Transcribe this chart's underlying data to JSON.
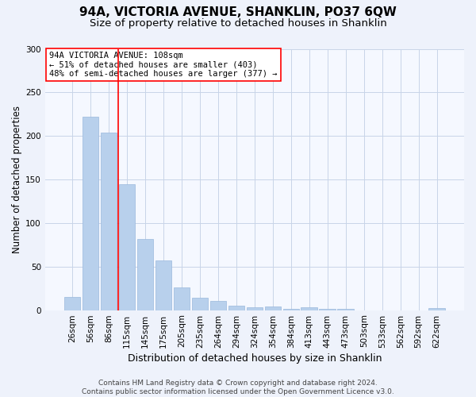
{
  "title": "94A, VICTORIA AVENUE, SHANKLIN, PO37 6QW",
  "subtitle": "Size of property relative to detached houses in Shanklin",
  "xlabel": "Distribution of detached houses by size in Shanklin",
  "ylabel": "Number of detached properties",
  "footer_line1": "Contains HM Land Registry data © Crown copyright and database right 2024.",
  "footer_line2": "Contains public sector information licensed under the Open Government Licence v3.0.",
  "bar_labels": [
    "26sqm",
    "56sqm",
    "86sqm",
    "115sqm",
    "145sqm",
    "175sqm",
    "205sqm",
    "235sqm",
    "264sqm",
    "294sqm",
    "324sqm",
    "354sqm",
    "384sqm",
    "413sqm",
    "443sqm",
    "473sqm",
    "503sqm",
    "533sqm",
    "562sqm",
    "592sqm",
    "622sqm"
  ],
  "bar_values": [
    15,
    222,
    204,
    145,
    82,
    57,
    26,
    14,
    11,
    5,
    3,
    4,
    1,
    3,
    1,
    1,
    0,
    0,
    0,
    0,
    2
  ],
  "bar_color": "#b8d0ec",
  "bar_edge_color": "#9ab8dc",
  "vline_x": 2.5,
  "vline_color": "red",
  "annotation_title": "94A VICTORIA AVENUE: 108sqm",
  "annotation_line1": "← 51% of detached houses are smaller (403)",
  "annotation_line2": "48% of semi-detached houses are larger (377) →",
  "annotation_box_color": "white",
  "annotation_box_edge": "red",
  "ylim": [
    0,
    300
  ],
  "yticks": [
    0,
    50,
    100,
    150,
    200,
    250,
    300
  ],
  "bg_color": "#eef2fb",
  "plot_bg_color": "#f5f8ff",
  "grid_color": "#c8d4e8",
  "title_fontsize": 11,
  "subtitle_fontsize": 9.5,
  "xlabel_fontsize": 9,
  "ylabel_fontsize": 8.5,
  "tick_fontsize": 7.5,
  "footer_fontsize": 6.5,
  "ann_fontsize": 7.5
}
